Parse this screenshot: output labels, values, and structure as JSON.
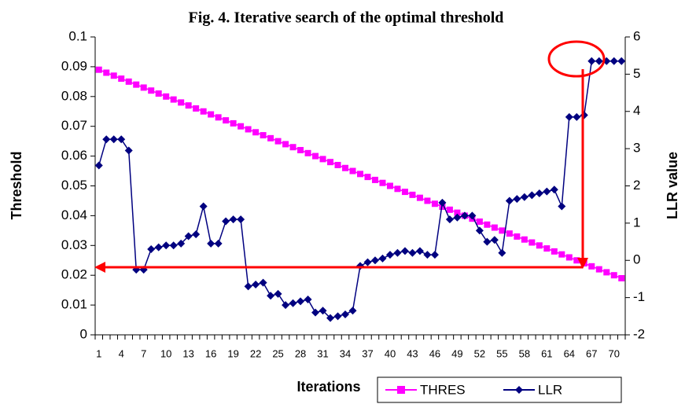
{
  "chart_data": {
    "type": "line",
    "title": "Fig. 4. Iterative search of the optimal threshold",
    "x_label": "Iterations",
    "y_label": "Threshold",
    "y2_label": "LLR value",
    "categories": [
      "1",
      null,
      null,
      "4",
      null,
      null,
      "7",
      null,
      null,
      "10",
      null,
      null,
      "13",
      null,
      null,
      "16",
      null,
      null,
      "19",
      null,
      null,
      "22",
      null,
      null,
      "25",
      null,
      null,
      "28",
      null,
      null,
      "31",
      null,
      null,
      "34",
      null,
      null,
      "37",
      null,
      null,
      "40",
      null,
      null,
      "43",
      null,
      null,
      "46",
      null,
      null,
      "49",
      null,
      null,
      "52",
      null,
      null,
      "55",
      null,
      null,
      "58",
      null,
      null,
      "61",
      null,
      null,
      "64",
      null,
      null,
      "67",
      null,
      null,
      "70",
      null
    ],
    "series": [
      {
        "name": "THRES",
        "color": "#ff00ff",
        "marker": "square",
        "values": [
          0.089,
          0.088,
          0.087,
          0.086,
          0.085,
          0.084,
          0.083,
          0.082,
          0.081,
          0.08,
          0.079,
          0.078,
          0.077,
          0.076,
          0.075,
          0.074,
          0.073,
          0.072,
          0.071,
          0.07,
          0.069,
          0.068,
          0.067,
          0.066,
          0.065,
          0.064,
          0.063,
          0.062,
          0.061,
          0.06,
          0.059,
          0.058,
          0.057,
          0.056,
          0.055,
          0.054,
          0.053,
          0.052,
          0.051,
          0.05,
          0.049,
          0.048,
          0.047,
          0.046,
          0.045,
          0.044,
          0.043,
          0.042,
          0.041,
          0.04,
          0.039,
          0.038,
          0.037,
          0.036,
          0.035,
          0.034,
          0.033,
          0.032,
          0.031,
          0.03,
          0.029,
          0.028,
          0.027,
          0.026,
          0.025,
          0.024,
          0.023,
          0.022,
          0.021,
          0.02,
          0.019
        ]
      },
      {
        "name": "LLR",
        "color": "#000080",
        "marker": "diamond",
        "axis": "y2",
        "values": [
          2.55,
          3.25,
          3.25,
          3.25,
          2.95,
          -0.25,
          -0.25,
          0.3,
          0.35,
          0.4,
          0.4,
          0.45,
          0.65,
          0.7,
          1.45,
          0.45,
          0.45,
          1.05,
          1.1,
          1.1,
          -0.7,
          -0.65,
          -0.6,
          -0.95,
          -0.9,
          -1.2,
          -1.15,
          -1.1,
          -1.05,
          -1.4,
          -1.35,
          -1.55,
          -1.5,
          -1.45,
          -1.35,
          -0.15,
          -0.05,
          0,
          0.05,
          0.15,
          0.2,
          0.25,
          0.2,
          0.25,
          0.15,
          0.15,
          1.55,
          1.1,
          1.15,
          1.2,
          1.2,
          0.8,
          0.5,
          0.55,
          0.2,
          1.6,
          1.65,
          1.7,
          1.75,
          1.8,
          1.85,
          1.9,
          1.45,
          3.85,
          3.85,
          3.9,
          5.35,
          5.35,
          5.35,
          5.35,
          5.35
        ]
      }
    ],
    "ylim": [
      0,
      0.1
    ],
    "yticks": [
      0,
      0.01,
      0.02,
      0.03,
      0.04,
      0.05,
      0.06,
      0.07,
      0.08,
      0.09,
      0.1
    ],
    "y2lim": [
      -2,
      6
    ],
    "y2ticks": [
      -2,
      -1,
      0,
      1,
      2,
      3,
      4,
      5,
      6
    ],
    "legend": "bottom"
  }
}
